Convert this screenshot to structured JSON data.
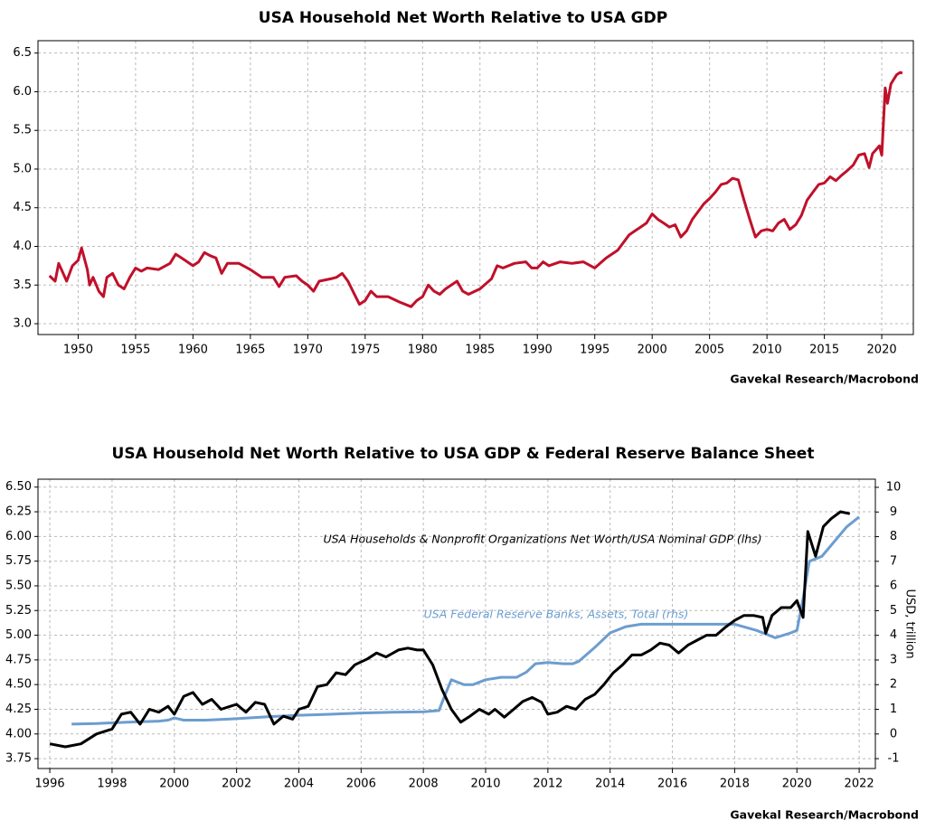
{
  "chart_data": [
    {
      "type": "line",
      "title": "USA Household Net Worth Relative to USA GDP",
      "source": "Gavekal Research/Macrobond",
      "color": "#c0102a",
      "grid": true,
      "xlim": [
        1946.5,
        2022.75
      ],
      "ylim": [
        2.86,
        6.66
      ],
      "xticks": [
        1950,
        1955,
        1960,
        1965,
        1970,
        1975,
        1980,
        1985,
        1990,
        1995,
        2000,
        2005,
        2010,
        2015,
        2020
      ],
      "yticks": [
        {
          "value": 3,
          "label": "3.0"
        },
        3.5,
        {
          "value": 4,
          "label": "4.0"
        },
        4.5,
        {
          "value": 5,
          "label": "5.0"
        },
        5.5,
        {
          "value": 6,
          "label": "6.0"
        },
        6.5
      ],
      "x": [
        1947.5,
        1948,
        1948.3,
        1949,
        1949.5,
        1950,
        1950.3,
        1950.8,
        1951,
        1951.3,
        1951.8,
        1952.2,
        1952.5,
        1953,
        1953.5,
        1954,
        1954.5,
        1955,
        1955.5,
        1956,
        1957,
        1958,
        1958.5,
        1959,
        1960,
        1960.5,
        1961,
        1961.5,
        1962,
        1962.5,
        1963,
        1964,
        1965,
        1966,
        1967,
        1967.5,
        1968,
        1969,
        1969.5,
        1970,
        1970.5,
        1971,
        1972,
        1972.5,
        1973,
        1973.5,
        1974,
        1974.5,
        1975,
        1975.5,
        1976,
        1977,
        1978,
        1979,
        1979.5,
        1980,
        1980.5,
        1981,
        1981.5,
        1982,
        1983,
        1983.5,
        1984,
        1985,
        1986,
        1986.5,
        1987,
        1988,
        1989,
        1989.5,
        1990,
        1990.5,
        1991,
        1992,
        1993,
        1994,
        1995,
        1996,
        1997,
        1997.5,
        1998,
        1998.5,
        1999,
        1999.5,
        2000,
        2000.5,
        2001,
        2001.5,
        2002,
        2002.5,
        2003,
        2003.5,
        2004,
        2004.5,
        2005,
        2005.5,
        2006,
        2006.5,
        2007,
        2007.5,
        2008,
        2008.5,
        2009,
        2009.5,
        2010,
        2010.5,
        2011,
        2011.5,
        2012,
        2012.5,
        2013,
        2013.5,
        2014,
        2014.5,
        2015,
        2015.5,
        2016,
        2016.5,
        2017,
        2017.5,
        2018,
        2018.5,
        2018.9,
        2019.2,
        2019.5,
        2019.8,
        2020,
        2020.3,
        2020.5,
        2020.8,
        2021,
        2021.3,
        2021.6,
        2021.8
      ],
      "values": [
        3.62,
        3.55,
        3.78,
        3.55,
        3.75,
        3.82,
        3.98,
        3.7,
        3.5,
        3.6,
        3.42,
        3.35,
        3.6,
        3.65,
        3.5,
        3.45,
        3.6,
        3.72,
        3.68,
        3.72,
        3.7,
        3.78,
        3.9,
        3.85,
        3.75,
        3.8,
        3.92,
        3.88,
        3.85,
        3.65,
        3.78,
        3.78,
        3.7,
        3.6,
        3.6,
        3.48,
        3.6,
        3.62,
        3.55,
        3.5,
        3.42,
        3.55,
        3.58,
        3.6,
        3.65,
        3.55,
        3.4,
        3.25,
        3.3,
        3.42,
        3.35,
        3.35,
        3.28,
        3.22,
        3.3,
        3.35,
        3.5,
        3.42,
        3.38,
        3.45,
        3.55,
        3.42,
        3.38,
        3.45,
        3.58,
        3.75,
        3.72,
        3.78,
        3.8,
        3.72,
        3.72,
        3.8,
        3.75,
        3.8,
        3.78,
        3.8,
        3.72,
        3.85,
        3.95,
        4.05,
        4.15,
        4.2,
        4.25,
        4.3,
        4.42,
        4.35,
        4.3,
        4.25,
        4.28,
        4.12,
        4.2,
        4.35,
        4.45,
        4.55,
        4.62,
        4.7,
        4.8,
        4.82,
        4.88,
        4.86,
        4.6,
        4.35,
        4.12,
        4.2,
        4.22,
        4.2,
        4.3,
        4.35,
        4.22,
        4.28,
        4.4,
        4.6,
        4.7,
        4.8,
        4.82,
        4.9,
        4.85,
        4.92,
        4.98,
        5.05,
        5.18,
        5.2,
        5.02,
        5.2,
        5.25,
        5.3,
        5.18,
        6.05,
        5.85,
        6.1,
        6.15,
        6.22,
        6.25,
        6.24
      ]
    },
    {
      "type": "line",
      "title": "USA Household Net Worth Relative to USA GDP & Federal Reserve Balance Sheet",
      "source": "Gavekal Research/Macrobond",
      "grid": true,
      "xlim": [
        1995.62,
        2022.52
      ],
      "ylim": [
        3.65,
        6.58
      ],
      "y2lim": [
        -1.4,
        10.33
      ],
      "y2label": "USD, trillion",
      "xticks": [
        1996,
        1998,
        2000,
        2002,
        2004,
        2006,
        2008,
        2010,
        2012,
        2014,
        2016,
        2018,
        2020,
        2022
      ],
      "yticks": [
        {
          "value": 3.75,
          "label": "3.75"
        },
        {
          "value": 4,
          "label": "4.00"
        },
        {
          "value": 4.25,
          "label": "4.25"
        },
        {
          "value": 4.5,
          "label": "4.50"
        },
        {
          "value": 4.75,
          "label": "4.75"
        },
        {
          "value": 5,
          "label": "5.00"
        },
        {
          "value": 5.25,
          "label": "5.25"
        },
        {
          "value": 5.5,
          "label": "5.50"
        },
        {
          "value": 5.75,
          "label": "5.75"
        },
        {
          "value": 6,
          "label": "6.00"
        },
        {
          "value": 6.25,
          "label": "6.25"
        },
        {
          "value": 6.5,
          "label": "6.50"
        }
      ],
      "y2ticks": [
        -1,
        0,
        1,
        2,
        3,
        4,
        5,
        6,
        7,
        8,
        9,
        10
      ],
      "series": [
        {
          "name": "USA Households & Nonprofit Organizations Net Worth/USA Nominal GDP (lhs)",
          "color": "#000000",
          "x": [
            1996,
            1996.5,
            1997,
            1997.5,
            1998,
            1998.3,
            1998.6,
            1998.9,
            1999.2,
            1999.5,
            1999.8,
            2000,
            2000.3,
            2000.6,
            2000.9,
            2001.2,
            2001.5,
            2001.8,
            2002,
            2002.3,
            2002.6,
            2002.9,
            2003.2,
            2003.5,
            2003.8,
            2004,
            2004.3,
            2004.6,
            2004.9,
            2005.2,
            2005.5,
            2005.8,
            2006.2,
            2006.5,
            2006.8,
            2007.2,
            2007.5,
            2007.8,
            2008,
            2008.3,
            2008.6,
            2008.9,
            2009.2,
            2009.5,
            2009.8,
            2010.1,
            2010.3,
            2010.6,
            2010.9,
            2011.2,
            2011.5,
            2011.8,
            2012,
            2012.3,
            2012.6,
            2012.9,
            2013.2,
            2013.5,
            2013.8,
            2014.1,
            2014.4,
            2014.7,
            2015,
            2015.3,
            2015.6,
            2015.9,
            2016.2,
            2016.5,
            2016.8,
            2017.1,
            2017.4,
            2017.7,
            2018,
            2018.3,
            2018.6,
            2018.9,
            2019,
            2019.2,
            2019.5,
            2019.8,
            2020,
            2020.2,
            2020.35,
            2020.6,
            2020.85,
            2021.1,
            2021.4,
            2021.7
          ],
          "values": [
            3.9,
            3.87,
            3.9,
            4.0,
            4.05,
            4.2,
            4.22,
            4.1,
            4.25,
            4.22,
            4.28,
            4.2,
            4.38,
            4.42,
            4.3,
            4.35,
            4.25,
            4.28,
            4.3,
            4.22,
            4.32,
            4.3,
            4.1,
            4.18,
            4.15,
            4.25,
            4.28,
            4.48,
            4.5,
            4.62,
            4.6,
            4.7,
            4.76,
            4.82,
            4.78,
            4.85,
            4.87,
            4.85,
            4.85,
            4.7,
            4.45,
            4.25,
            4.12,
            4.18,
            4.25,
            4.2,
            4.25,
            4.17,
            4.25,
            4.33,
            4.37,
            4.32,
            4.2,
            4.22,
            4.28,
            4.25,
            4.35,
            4.4,
            4.5,
            4.62,
            4.7,
            4.8,
            4.8,
            4.85,
            4.92,
            4.9,
            4.82,
            4.9,
            4.95,
            5.0,
            5.0,
            5.08,
            5.15,
            5.2,
            5.2,
            5.18,
            5.02,
            5.2,
            5.28,
            5.28,
            5.35,
            5.18,
            6.05,
            5.8,
            6.1,
            6.18,
            6.25,
            6.23
          ]
        },
        {
          "name": "USA Federal Reserve Banks, Assets, Total (rhs)",
          "color": "#6c9dcf",
          "axis": "y2",
          "x": [
            1996.7,
            1997.5,
            1998.5,
            1999.5,
            1999.8,
            2000,
            2000.3,
            2001,
            2002,
            2003,
            2004,
            2005,
            2006,
            2007,
            2008,
            2008.5,
            2008.7,
            2008.9,
            2009.3,
            2009.6,
            2010,
            2010.5,
            2011,
            2011.3,
            2011.6,
            2012,
            2012.5,
            2012.8,
            2013,
            2013.5,
            2014,
            2014.5,
            2015,
            2016,
            2017,
            2018,
            2018.7,
            2019.3,
            2019.8,
            2020,
            2020.2,
            2020.4,
            2020.8,
            2021.2,
            2021.6,
            2022
          ],
          "values": [
            0.4,
            0.42,
            0.48,
            0.52,
            0.56,
            0.65,
            0.56,
            0.56,
            0.62,
            0.7,
            0.76,
            0.8,
            0.85,
            0.88,
            0.9,
            0.95,
            1.6,
            2.2,
            2.0,
            2.0,
            2.2,
            2.3,
            2.3,
            2.5,
            2.85,
            2.9,
            2.85,
            2.85,
            2.95,
            3.5,
            4.1,
            4.35,
            4.45,
            4.45,
            4.45,
            4.45,
            4.2,
            3.9,
            4.1,
            4.2,
            5.5,
            7.0,
            7.2,
            7.8,
            8.4,
            8.8
          ]
        }
      ]
    }
  ]
}
